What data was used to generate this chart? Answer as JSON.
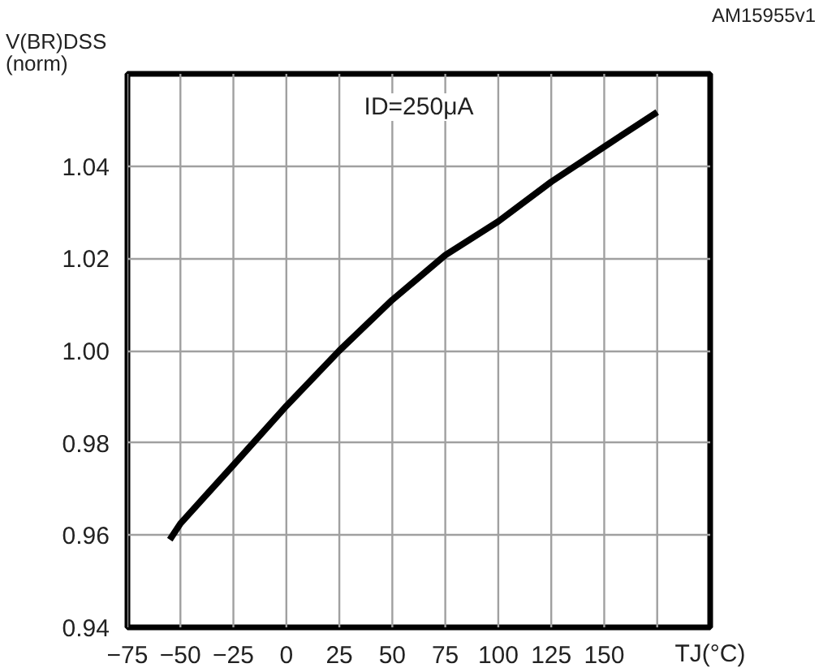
{
  "chart_data": {
    "type": "line",
    "xlabel": "TJ(°C)",
    "ylabel": "V(BR)DSS\n(norm)",
    "annotations": [
      "ID=250μA",
      "AM15955v1"
    ],
    "x": [
      -55,
      -50,
      -25,
      0,
      25,
      50,
      75,
      100,
      125,
      150,
      175
    ],
    "series": [
      {
        "color": "#000000",
        "values": [
          0.959,
          0.9625,
          0.9752,
          0.988,
          1.0,
          1.011,
          1.0207,
          1.028,
          1.0366,
          1.0442,
          1.0517
        ]
      }
    ],
    "xlim": [
      -75,
      200
    ],
    "ylim": [
      0.94,
      1.06
    ],
    "xticks": [
      -75,
      -50,
      -25,
      0,
      25,
      50,
      75,
      100,
      125,
      150,
      {
        "value": 175,
        "label": null
      }
    ],
    "yticks": [
      0.94,
      0.96,
      0.98,
      {
        "value": 1.0,
        "label": "1.00"
      },
      1.02,
      1.04
    ],
    "grid": true,
    "line_style": "solid"
  }
}
